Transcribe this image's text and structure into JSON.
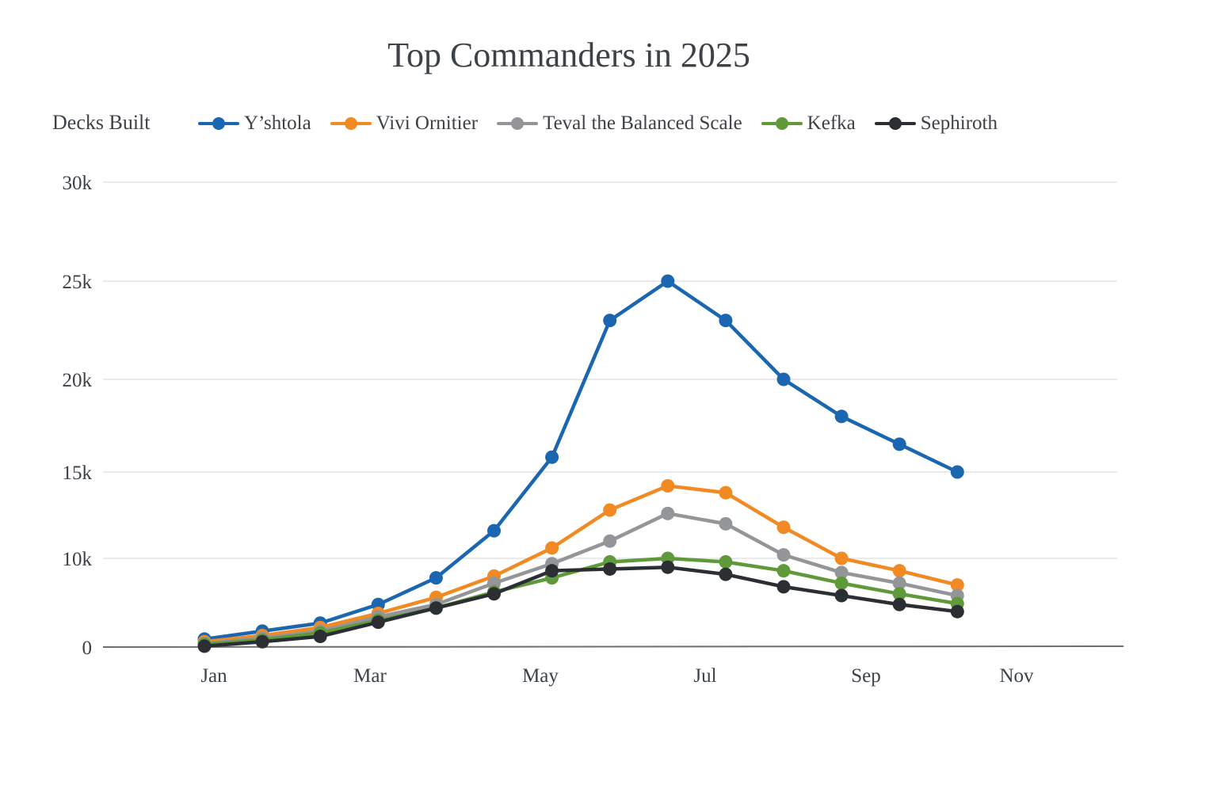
{
  "chart_data": {
    "type": "line",
    "title": "Top Commanders in 2025",
    "ylabel": "Decks Built",
    "xlabel": "",
    "legend_position": "top",
    "grid": true,
    "ylim": [
      0,
      30000
    ],
    "y_ticks": [
      {
        "value": 0,
        "label": "0"
      },
      {
        "value": 10000,
        "label": "10k"
      },
      {
        "value": 15000,
        "label": "15k"
      },
      {
        "value": 20000,
        "label": "20k"
      },
      {
        "value": 25000,
        "label": "25k"
      },
      {
        "value": 30000,
        "label": "30k"
      }
    ],
    "x_labels": [
      "Jan",
      "Mar",
      "May",
      "Jul",
      "Sep",
      "Nov"
    ],
    "series": [
      {
        "name": "Y’shtola",
        "color": "#1a66b0",
        "values": [
          900,
          1800,
          2700,
          4800,
          7800,
          11600,
          15800,
          23000,
          25000,
          23000,
          20000,
          18000,
          16500,
          15000
        ]
      },
      {
        "name": "Vivi Ornitier",
        "color": "#f28a24",
        "values": [
          600,
          1300,
          2200,
          3800,
          5600,
          8000,
          10600,
          12800,
          14200,
          13800,
          11800,
          10000,
          8600,
          7000
        ]
      },
      {
        "name": "Teval the Balanced Scale",
        "color": "#939598",
        "values": [
          400,
          1000,
          1800,
          3400,
          4800,
          7200,
          9400,
          11000,
          12600,
          12000,
          10200,
          8400,
          7200,
          5800
        ]
      },
      {
        "name": "Kefka",
        "color": "#5f9a3a",
        "values": [
          300,
          800,
          1600,
          3000,
          4400,
          6200,
          7800,
          9600,
          10000,
          9600,
          8600,
          7200,
          6000,
          4900
        ]
      },
      {
        "name": "Sephiroth",
        "color": "#2b2f33",
        "values": [
          100,
          600,
          1200,
          2800,
          4400,
          6000,
          8600,
          8800,
          9000,
          8200,
          6800,
          5800,
          4800,
          4000
        ]
      }
    ]
  }
}
